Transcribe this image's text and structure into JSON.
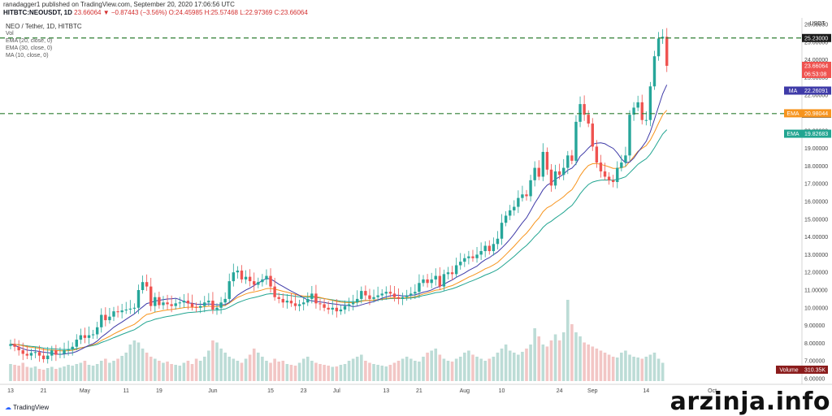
{
  "header": {
    "published_line": "ranadagger1 published on TradingView.com, September 20, 2020 17:06:56 UTC",
    "symbol": "HITBTC:NEOUSDT, 1D",
    "quote": "23.66064 ▼ −0.87443 (−3.56%) O:24.45985 H:25.57468 L:22.97369 C:23.66064"
  },
  "legend": {
    "title": "NEO / Tether, 1D, HITBTC",
    "vol": "Vol",
    "ema20": "EMA (20, close, 0)",
    "ema30": "EMA (30, close, 0)",
    "ma10": "MA (10, close, 0)"
  },
  "watermark": "arzinja.info",
  "branding": "TradingView",
  "colors": {
    "up": "#26a69a",
    "down": "#ef5350",
    "vol_up": "#bcdcd6",
    "vol_down": "#f2c6c5",
    "ma": "#3f3ba8",
    "ema20": "#f7941d",
    "ema30": "#22a591",
    "hline": "#2e7d32",
    "volume_tag": "#8b1c1c"
  },
  "chart_data": {
    "type": "candlestick",
    "title": "NEO / Tether, 1D, HITBTC",
    "currency": "USDT",
    "ylim": [
      6.0,
      26.0
    ],
    "y_ticks": [
      "26.00000",
      "25.00000",
      "24.00000",
      "23.00000",
      "22.00000",
      "21.00000",
      "20.00000",
      "19.00000",
      "18.00000",
      "17.00000",
      "16.00000",
      "15.00000",
      "14.00000",
      "13.00000",
      "12.00000",
      "11.00000",
      "10.00000",
      "9.00000",
      "8.00000",
      "7.00000",
      "6.00000"
    ],
    "x_ticks": [
      {
        "label": "13",
        "day": 0
      },
      {
        "label": "21",
        "day": 8
      },
      {
        "label": "May",
        "day": 18
      },
      {
        "label": "11",
        "day": 28
      },
      {
        "label": "19",
        "day": 36
      },
      {
        "label": "Jun",
        "day": 49
      },
      {
        "label": "15",
        "day": 63
      },
      {
        "label": "23",
        "day": 71
      },
      {
        "label": "Jul",
        "day": 79
      },
      {
        "label": "13",
        "day": 91
      },
      {
        "label": "21",
        "day": 99
      },
      {
        "label": "Aug",
        "day": 110
      },
      {
        "label": "10",
        "day": 119
      },
      {
        "label": "24",
        "day": 133
      },
      {
        "label": "Sep",
        "day": 141
      },
      {
        "label": "14",
        "day": 154
      },
      {
        "label": "Oct",
        "day": 170
      }
    ],
    "horizontal_lines": [
      {
        "value": 25.23,
        "label": "25.23000"
      },
      {
        "value": 20.9633,
        "label": "20.96330"
      }
    ],
    "price_tags": [
      {
        "value": 23.66064,
        "label": "23.66064",
        "sub": "06:53:08",
        "name": "last-price"
      },
      {
        "value": 22.26091,
        "label": "22.26091",
        "prefix": "MA",
        "name": "ma"
      },
      {
        "value": 20.98044,
        "label": "20.98044",
        "prefix": "EMA",
        "name": "ema20"
      },
      {
        "value": 19.82683,
        "label": "19.82683",
        "prefix": "EMA",
        "name": "ema30"
      }
    ],
    "volume_tag": {
      "label": "310.35K",
      "prefix": "Volume"
    },
    "closes": [
      7.95,
      7.8,
      7.6,
      7.4,
      7.3,
      7.45,
      7.5,
      7.3,
      7.1,
      7.3,
      7.6,
      7.35,
      7.4,
      7.6,
      7.65,
      7.8,
      8.2,
      8.45,
      8.3,
      8.45,
      8.5,
      8.9,
      9.6,
      9.3,
      9.5,
      9.8,
      9.75,
      9.85,
      9.9,
      9.95,
      10.0,
      11.0,
      11.45,
      11.2,
      10.1,
      10.6,
      10.15,
      10.3,
      10.2,
      10.1,
      10.25,
      10.3,
      10.4,
      10.25,
      10.05,
      10.0,
      10.1,
      10.3,
      10.4,
      9.9,
      10.0,
      10.3,
      10.5,
      11.5,
      12.0,
      12.1,
      11.6,
      11.75,
      11.5,
      11.3,
      11.45,
      11.6,
      11.8,
      11.2,
      10.6,
      10.5,
      10.3,
      10.4,
      10.25,
      10.1,
      10.2,
      10.3,
      10.5,
      10.8,
      10.25,
      10.2,
      10.0,
      9.9,
      10.0,
      9.8,
      9.9,
      10.1,
      10.2,
      10.3,
      10.5,
      10.95,
      10.7,
      10.5,
      10.6,
      10.7,
      10.8,
      10.9,
      10.8,
      10.6,
      10.5,
      10.6,
      10.7,
      10.8,
      10.9,
      11.4,
      11.6,
      11.4,
      11.6,
      11.8,
      11.2,
      11.9,
      12.0,
      11.9,
      12.4,
      12.6,
      12.8,
      12.9,
      12.8,
      13.0,
      13.2,
      13.5,
      13.2,
      13.6,
      13.9,
      14.8,
      15.2,
      15.5,
      15.7,
      16.2,
      16.4,
      16.3,
      17.2,
      17.9,
      17.4,
      18.8,
      17.8,
      16.9,
      17.7,
      17.5,
      17.9,
      18.6,
      18.3,
      20.5,
      21.5,
      20.9,
      20.4,
      19.1,
      18.2,
      17.7,
      17.4,
      17.2,
      17.1,
      17.9,
      18.2,
      18.6,
      20.9,
      21.3,
      21.6,
      20.6,
      20.6,
      22.5,
      24.2,
      25.2,
      25.3,
      23.66
    ],
    "volumes": [
      0.42,
      0.4,
      0.38,
      0.45,
      0.35,
      0.33,
      0.36,
      0.3,
      0.28,
      0.32,
      0.35,
      0.3,
      0.33,
      0.36,
      0.4,
      0.38,
      0.42,
      0.45,
      0.5,
      0.4,
      0.38,
      0.42,
      0.5,
      0.55,
      0.45,
      0.5,
      0.55,
      0.62,
      0.7,
      0.9,
      1.0,
      0.95,
      0.8,
      0.7,
      0.6,
      0.55,
      0.5,
      0.45,
      0.48,
      0.42,
      0.4,
      0.38,
      0.45,
      0.5,
      0.42,
      0.55,
      0.5,
      0.6,
      0.75,
      1.0,
      0.95,
      0.8,
      0.7,
      0.6,
      0.55,
      0.5,
      0.45,
      0.55,
      0.65,
      0.8,
      0.7,
      0.6,
      0.5,
      0.45,
      0.55,
      0.48,
      0.5,
      0.42,
      0.4,
      0.38,
      0.45,
      0.55,
      0.6,
      0.5,
      0.45,
      0.42,
      0.4,
      0.38,
      0.35,
      0.36,
      0.4,
      0.42,
      0.5,
      0.55,
      0.6,
      0.65,
      0.5,
      0.45,
      0.42,
      0.4,
      0.38,
      0.36,
      0.4,
      0.45,
      0.5,
      0.55,
      0.6,
      0.55,
      0.5,
      0.48,
      0.6,
      0.7,
      0.75,
      0.8,
      0.65,
      0.55,
      0.5,
      0.48,
      0.55,
      0.6,
      0.7,
      0.75,
      0.65,
      0.6,
      0.55,
      0.5,
      0.55,
      0.6,
      0.7,
      0.8,
      0.9,
      0.75,
      0.7,
      0.65,
      0.72,
      0.8,
      0.9,
      1.3,
      1.1,
      0.9,
      0.85,
      1.0,
      1.15,
      1.0,
      1.2,
      2.0,
      1.4,
      1.2,
      1.1,
      0.95,
      0.9,
      0.85,
      0.8,
      0.75,
      0.7,
      0.65,
      0.6,
      0.58,
      0.7,
      0.75,
      0.65,
      0.6,
      0.58,
      0.55,
      0.6,
      0.65,
      0.7,
      0.55,
      0.45
    ]
  }
}
